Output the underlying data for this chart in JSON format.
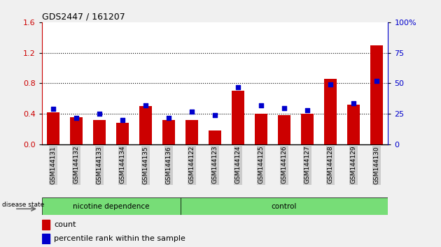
{
  "title": "GDS2447 / 161207",
  "samples": [
    "GSM144131",
    "GSM144132",
    "GSM144133",
    "GSM144134",
    "GSM144135",
    "GSM144136",
    "GSM144122",
    "GSM144123",
    "GSM144124",
    "GSM144125",
    "GSM144126",
    "GSM144127",
    "GSM144128",
    "GSM144129",
    "GSM144130"
  ],
  "count_values": [
    0.42,
    0.36,
    0.32,
    0.28,
    0.5,
    0.32,
    0.32,
    0.18,
    0.7,
    0.4,
    0.38,
    0.4,
    0.86,
    0.52,
    1.3
  ],
  "percentile_values": [
    29,
    22,
    25,
    20,
    32,
    22,
    27,
    24,
    47,
    32,
    30,
    28,
    49,
    34,
    52
  ],
  "bar_color": "#cc0000",
  "dot_color": "#0000cc",
  "group1_label": "nicotine dependence",
  "group2_label": "control",
  "group1_count": 6,
  "group2_count": 9,
  "group_color": "#77dd77",
  "disease_state_label": "disease state",
  "legend_count_label": "count",
  "legend_percentile_label": "percentile rank within the sample",
  "ylim_left": [
    0,
    1.6
  ],
  "ylim_right": [
    0,
    100
  ],
  "yticks_left": [
    0,
    0.4,
    0.8,
    1.2,
    1.6
  ],
  "yticks_right": [
    0,
    25,
    50,
    75,
    100
  ],
  "background_color": "#f0f0f0",
  "plot_bg_color": "#ffffff",
  "xtick_bg_color": "#cccccc"
}
